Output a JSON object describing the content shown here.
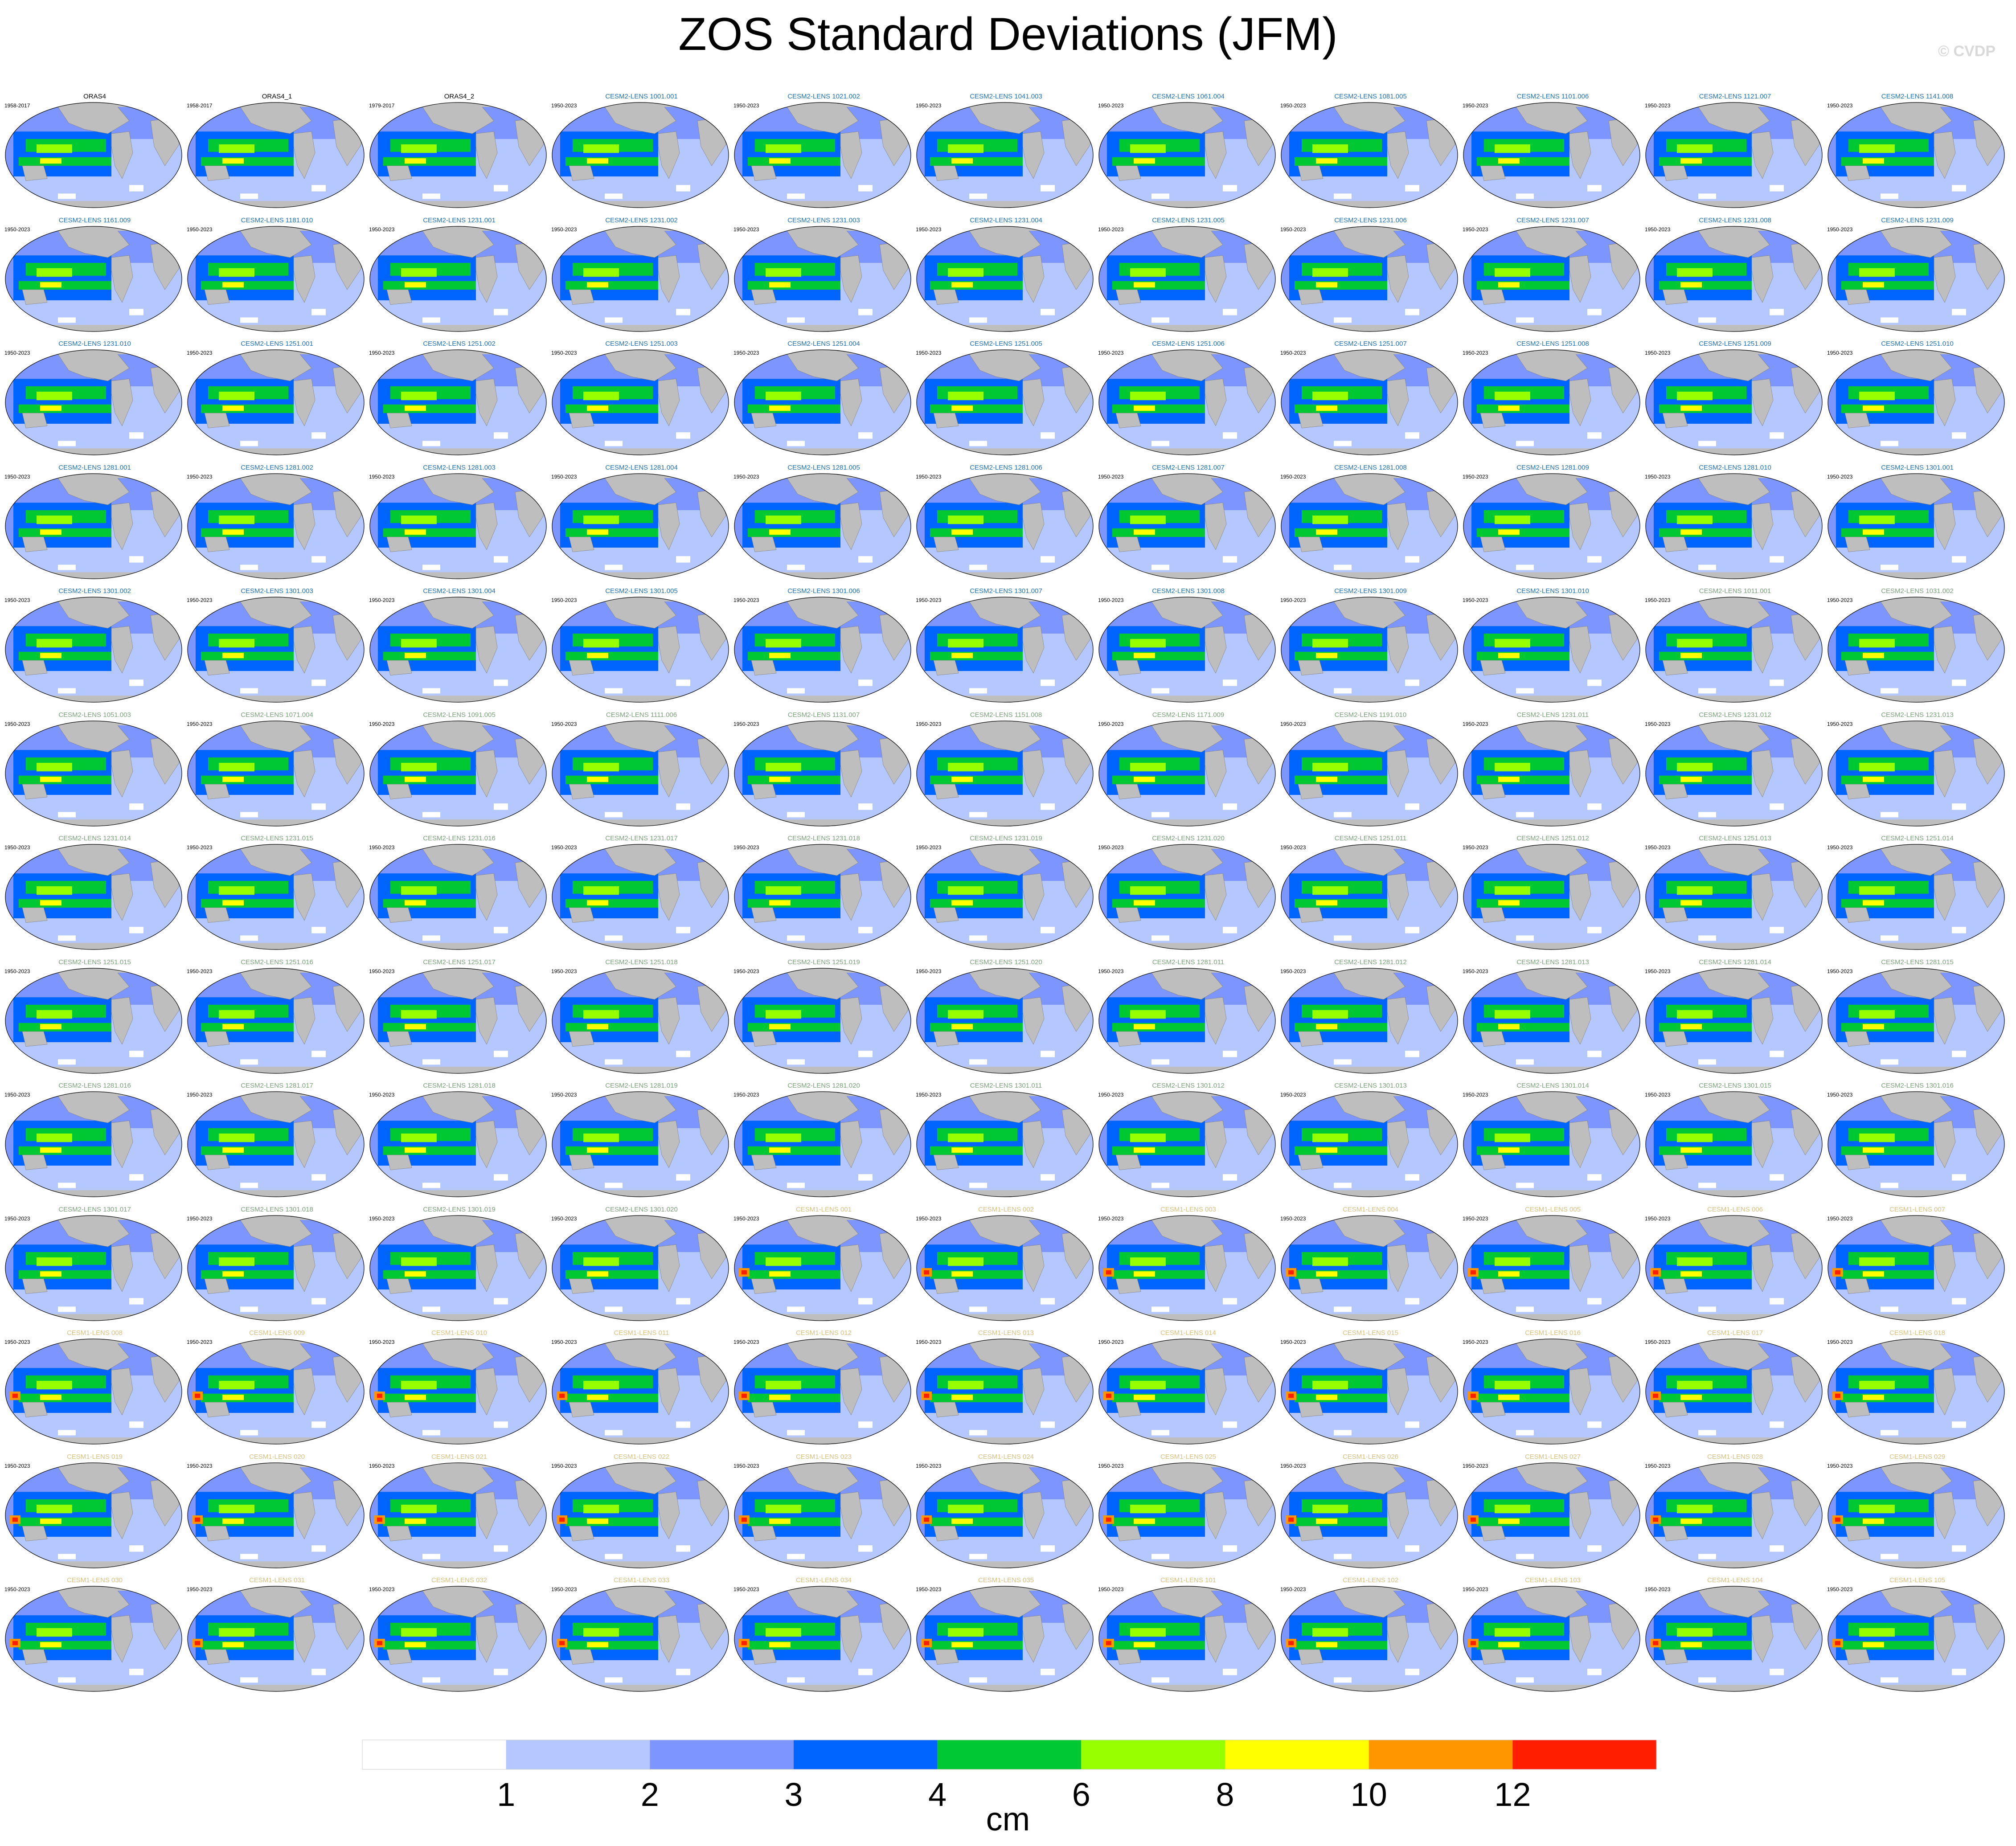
{
  "title": "ZOS Standard Deviations (JFM)",
  "watermark": "© CVDP",
  "colorbar": {
    "levels": [
      1,
      2,
      3,
      4,
      6,
      8,
      10,
      12
    ],
    "colors": [
      "#ffffff",
      "#b4c8ff",
      "#7d96ff",
      "#0064ff",
      "#00c832",
      "#96ff00",
      "#ffff00",
      "#ff9600",
      "#ff1e00"
    ],
    "units": "cm"
  },
  "chart_data": {
    "type": "heatmap",
    "title": "ZOS Standard Deviations (JFM)",
    "colorbar_levels": [
      1,
      2,
      3,
      4,
      6,
      8,
      10,
      12
    ],
    "colorbar_units": "cm",
    "layout": "13 rows x 11 columns of global maps",
    "panels": [
      {
        "name": "ORAS4",
        "period": "1958-2017"
      },
      {
        "name": "ORAS4_1",
        "period": "1958-2017"
      },
      {
        "name": "ORAS4_2",
        "period": "1979-2017"
      },
      {
        "name": "CESM2-LENS 1001.001",
        "period": "1950-2023"
      },
      {
        "name": "CESM2-LENS 1021.002",
        "period": "1950-2023"
      },
      {
        "name": "CESM2-LENS 1041.003",
        "period": "1950-2023"
      },
      {
        "name": "CESM2-LENS 1061.004",
        "period": "1950-2023"
      },
      {
        "name": "CESM2-LENS 1081.005",
        "period": "1950-2023"
      },
      {
        "name": "CESM2-LENS 1101.006",
        "period": "1950-2023"
      },
      {
        "name": "CESM2-LENS 1121.007",
        "period": "1950-2023"
      },
      {
        "name": "CESM2-LENS 1141.008",
        "period": "1950-2023"
      },
      {
        "name": "CESM2-LENS 1161.009",
        "period": "1950-2023"
      },
      {
        "name": "CESM2-LENS 1181.010",
        "period": "1950-2023"
      },
      {
        "name": "CESM2-LENS 1231.001",
        "period": "1950-2023"
      },
      {
        "name": "CESM2-LENS 1231.002",
        "period": "1950-2023"
      },
      {
        "name": "CESM2-LENS 1231.003",
        "period": "1950-2023"
      },
      {
        "name": "CESM2-LENS 1231.004",
        "period": "1950-2023"
      },
      {
        "name": "CESM2-LENS 1231.005",
        "period": "1950-2023"
      },
      {
        "name": "CESM2-LENS 1231.006",
        "period": "1950-2023"
      },
      {
        "name": "CESM2-LENS 1231.007",
        "period": "1950-2023"
      },
      {
        "name": "CESM2-LENS 1231.008",
        "period": "1950-2023"
      },
      {
        "name": "CESM2-LENS 1231.009",
        "period": "1950-2023"
      },
      {
        "name": "CESM2-LENS 1231.010",
        "period": "1950-2023"
      },
      {
        "name": "CESM2-LENS 1251.001",
        "period": "1950-2023"
      },
      {
        "name": "CESM2-LENS 1251.002",
        "period": "1950-2023"
      },
      {
        "name": "CESM2-LENS 1251.003",
        "period": "1950-2023"
      },
      {
        "name": "CESM2-LENS 1251.004",
        "period": "1950-2023"
      },
      {
        "name": "CESM2-LENS 1251.005",
        "period": "1950-2023"
      },
      {
        "name": "CESM2-LENS 1251.006",
        "period": "1950-2023"
      },
      {
        "name": "CESM2-LENS 1251.007",
        "period": "1950-2023"
      },
      {
        "name": "CESM2-LENS 1251.008",
        "period": "1950-2023"
      },
      {
        "name": "CESM2-LENS 1251.009",
        "period": "1950-2023"
      },
      {
        "name": "CESM2-LENS 1251.010",
        "period": "1950-2023"
      },
      {
        "name": "CESM2-LENS 1281.001",
        "period": "1950-2023"
      },
      {
        "name": "CESM2-LENS 1281.002",
        "period": "1950-2023"
      },
      {
        "name": "CESM2-LENS 1281.003",
        "period": "1950-2023"
      },
      {
        "name": "CESM2-LENS 1281.004",
        "period": "1950-2023"
      },
      {
        "name": "CESM2-LENS 1281.005",
        "period": "1950-2023"
      },
      {
        "name": "CESM2-LENS 1281.006",
        "period": "1950-2023"
      },
      {
        "name": "CESM2-LENS 1281.007",
        "period": "1950-2023"
      },
      {
        "name": "CESM2-LENS 1281.008",
        "period": "1950-2023"
      },
      {
        "name": "CESM2-LENS 1281.009",
        "period": "1950-2023"
      },
      {
        "name": "CESM2-LENS 1281.010",
        "period": "1950-2023"
      },
      {
        "name": "CESM2-LENS 1301.001",
        "period": "1950-2023"
      },
      {
        "name": "CESM2-LENS 1301.002",
        "period": "1950-2023"
      },
      {
        "name": "CESM2-LENS 1301.003",
        "period": "1950-2023"
      },
      {
        "name": "CESM2-LENS 1301.004",
        "period": "1950-2023"
      },
      {
        "name": "CESM2-LENS 1301.005",
        "period": "1950-2023"
      },
      {
        "name": "CESM2-LENS 1301.006",
        "period": "1950-2023"
      },
      {
        "name": "CESM2-LENS 1301.007",
        "period": "1950-2023"
      },
      {
        "name": "CESM2-LENS 1301.008",
        "period": "1950-2023"
      },
      {
        "name": "CESM2-LENS 1301.009",
        "period": "1950-2023"
      },
      {
        "name": "CESM2-LENS 1301.010",
        "period": "1950-2023"
      },
      {
        "name": "CESM2-LENS 1011.001",
        "period": "1950-2023"
      },
      {
        "name": "CESM2-LENS 1031.002",
        "period": "1950-2023"
      },
      {
        "name": "CESM2-LENS 1051.003",
        "period": "1950-2023"
      },
      {
        "name": "CESM2-LENS 1071.004",
        "period": "1950-2023"
      },
      {
        "name": "CESM2-LENS 1091.005",
        "period": "1950-2023"
      },
      {
        "name": "CESM2-LENS 1111.006",
        "period": "1950-2023"
      },
      {
        "name": "CESM2-LENS 1131.007",
        "period": "1950-2023"
      },
      {
        "name": "CESM2-LENS 1151.008",
        "period": "1950-2023"
      },
      {
        "name": "CESM2-LENS 1171.009",
        "period": "1950-2023"
      },
      {
        "name": "CESM2-LENS 1191.010",
        "period": "1950-2023"
      },
      {
        "name": "CESM2-LENS 1231.011",
        "period": "1950-2023"
      },
      {
        "name": "CESM2-LENS 1231.012",
        "period": "1950-2023"
      },
      {
        "name": "CESM2-LENS 1231.013",
        "period": "1950-2023"
      },
      {
        "name": "CESM2-LENS 1231.014",
        "period": "1950-2023"
      },
      {
        "name": "CESM2-LENS 1231.015",
        "period": "1950-2023"
      },
      {
        "name": "CESM2-LENS 1231.016",
        "period": "1950-2023"
      },
      {
        "name": "CESM2-LENS 1231.017",
        "period": "1950-2023"
      },
      {
        "name": "CESM2-LENS 1231.018",
        "period": "1950-2023"
      },
      {
        "name": "CESM2-LENS 1231.019",
        "period": "1950-2023"
      },
      {
        "name": "CESM2-LENS 1231.020",
        "period": "1950-2023"
      },
      {
        "name": "CESM2-LENS 1251.011",
        "period": "1950-2023"
      },
      {
        "name": "CESM2-LENS 1251.012",
        "period": "1950-2023"
      },
      {
        "name": "CESM2-LENS 1251.013",
        "period": "1950-2023"
      },
      {
        "name": "CESM2-LENS 1251.014",
        "period": "1950-2023"
      },
      {
        "name": "CESM2-LENS 1251.015",
        "period": "1950-2023"
      },
      {
        "name": "CESM2-LENS 1251.016",
        "period": "1950-2023"
      },
      {
        "name": "CESM2-LENS 1251.017",
        "period": "1950-2023"
      },
      {
        "name": "CESM2-LENS 1251.018",
        "period": "1950-2023"
      },
      {
        "name": "CESM2-LENS 1251.019",
        "period": "1950-2023"
      },
      {
        "name": "CESM2-LENS 1251.020",
        "period": "1950-2023"
      },
      {
        "name": "CESM2-LENS 1281.011",
        "period": "1950-2023"
      },
      {
        "name": "CESM2-LENS 1281.012",
        "period": "1950-2023"
      },
      {
        "name": "CESM2-LENS 1281.013",
        "period": "1950-2023"
      },
      {
        "name": "CESM2-LENS 1281.014",
        "period": "1950-2023"
      },
      {
        "name": "CESM2-LENS 1281.015",
        "period": "1950-2023"
      },
      {
        "name": "CESM2-LENS 1281.016",
        "period": "1950-2023"
      },
      {
        "name": "CESM2-LENS 1281.017",
        "period": "1950-2023"
      },
      {
        "name": "CESM2-LENS 1281.018",
        "period": "1950-2023"
      },
      {
        "name": "CESM2-LENS 1281.019",
        "period": "1950-2023"
      },
      {
        "name": "CESM2-LENS 1281.020",
        "period": "1950-2023"
      },
      {
        "name": "CESM2-LENS 1301.011",
        "period": "1950-2023"
      },
      {
        "name": "CESM2-LENS 1301.012",
        "period": "1950-2023"
      },
      {
        "name": "CESM2-LENS 1301.013",
        "period": "1950-2023"
      },
      {
        "name": "CESM2-LENS 1301.014",
        "period": "1950-2023"
      },
      {
        "name": "CESM2-LENS 1301.015",
        "period": "1950-2023"
      },
      {
        "name": "CESM2-LENS 1301.016",
        "period": "1950-2023"
      },
      {
        "name": "CESM2-LENS 1301.017",
        "period": "1950-2023"
      },
      {
        "name": "CESM2-LENS 1301.018",
        "period": "1950-2023"
      },
      {
        "name": "CESM2-LENS 1301.019",
        "period": "1950-2023"
      },
      {
        "name": "CESM2-LENS 1301.020",
        "period": "1950-2023"
      },
      {
        "name": "CESM1-LENS 001",
        "period": "1950-2023"
      },
      {
        "name": "CESM1-LENS 002",
        "period": "1950-2023"
      },
      {
        "name": "CESM1-LENS 003",
        "period": "1950-2023"
      },
      {
        "name": "CESM1-LENS 004",
        "period": "1950-2023"
      },
      {
        "name": "CESM1-LENS 005",
        "period": "1950-2023"
      },
      {
        "name": "CESM1-LENS 006",
        "period": "1950-2023"
      },
      {
        "name": "CESM1-LENS 007",
        "period": "1950-2023"
      },
      {
        "name": "CESM1-LENS 008",
        "period": "1950-2023"
      },
      {
        "name": "CESM1-LENS 009",
        "period": "1950-2023"
      },
      {
        "name": "CESM1-LENS 010",
        "period": "1950-2023"
      },
      {
        "name": "CESM1-LENS 011",
        "period": "1950-2023"
      },
      {
        "name": "CESM1-LENS 012",
        "period": "1950-2023"
      },
      {
        "name": "CESM1-LENS 013",
        "period": "1950-2023"
      },
      {
        "name": "CESM1-LENS 014",
        "period": "1950-2023"
      },
      {
        "name": "CESM1-LENS 015",
        "period": "1950-2023"
      },
      {
        "name": "CESM1-LENS 016",
        "period": "1950-2023"
      },
      {
        "name": "CESM1-LENS 017",
        "period": "1950-2023"
      },
      {
        "name": "CESM1-LENS 018",
        "period": "1950-2023"
      },
      {
        "name": "CESM1-LENS 019",
        "period": "1950-2023"
      },
      {
        "name": "CESM1-LENS 020",
        "period": "1950-2023"
      },
      {
        "name": "CESM1-LENS 021",
        "period": "1950-2023"
      },
      {
        "name": "CESM1-LENS 022",
        "period": "1950-2023"
      },
      {
        "name": "CESM1-LENS 023",
        "period": "1950-2023"
      },
      {
        "name": "CESM1-LENS 024",
        "period": "1950-2023"
      },
      {
        "name": "CESM1-LENS 025",
        "period": "1950-2023"
      },
      {
        "name": "CESM1-LENS 026",
        "period": "1950-2023"
      },
      {
        "name": "CESM1-LENS 027",
        "period": "1950-2023"
      },
      {
        "name": "CESM1-LENS 028",
        "period": "1950-2023"
      },
      {
        "name": "CESM1-LENS 029",
        "period": "1950-2023"
      },
      {
        "name": "CESM1-LENS 030",
        "period": "1950-2023"
      },
      {
        "name": "CESM1-LENS 031",
        "period": "1950-2023"
      },
      {
        "name": "CESM1-LENS 032",
        "period": "1950-2023"
      },
      {
        "name": "CESM1-LENS 033",
        "period": "1950-2023"
      },
      {
        "name": "CESM1-LENS 034",
        "period": "1950-2023"
      },
      {
        "name": "CESM1-LENS 035",
        "period": "1950-2023"
      },
      {
        "name": "CESM1-LENS 101",
        "period": "1950-2023"
      },
      {
        "name": "CESM1-LENS 102",
        "period": "1950-2023"
      },
      {
        "name": "CESM1-LENS 103",
        "period": "1950-2023"
      },
      {
        "name": "CESM1-LENS 104",
        "period": "1950-2023"
      },
      {
        "name": "CESM1-LENS 105",
        "period": "1950-2023"
      }
    ],
    "title_colors": {
      "ORAS4": "#000000",
      "CESM2": "#1f6fb4",
      "CESM2_b": "#7aa07a",
      "CESM1": "#d8c080"
    }
  }
}
